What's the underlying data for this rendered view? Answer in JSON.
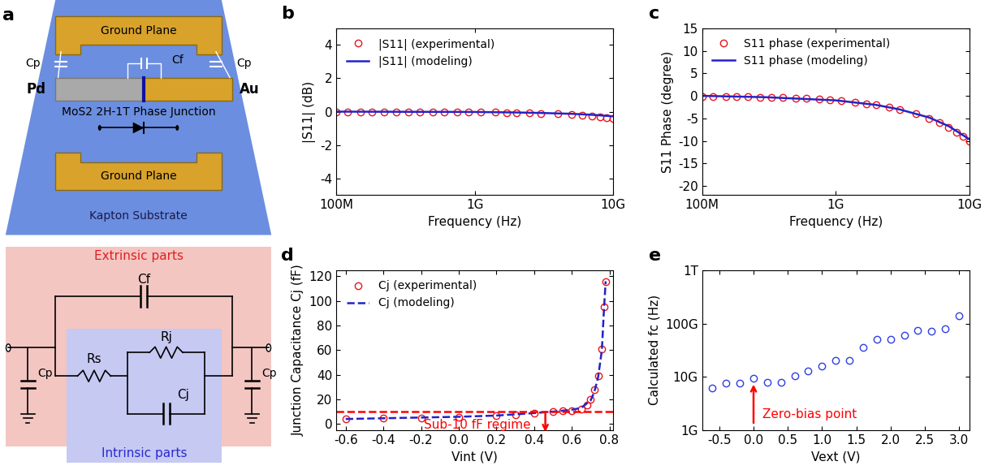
{
  "diagram": {
    "panel": "a",
    "substrate": "Kapton Substrate",
    "ground_planes": [
      "Ground Plane",
      "Ground Plane"
    ],
    "electrodes": [
      "Pd",
      "Au"
    ],
    "junction": "MoS2 2H-1T Phase Junction",
    "capacitors": {
      "parasitic": [
        "Cp",
        "Cp"
      ],
      "fringe": "Cf"
    },
    "circuit": {
      "extrinsic": "Extrinsic parts",
      "intrinsic": "Intrinsic parts",
      "fringe": "Cf",
      "parasitic": [
        "Cp",
        "Cp"
      ],
      "series": "Rs",
      "junction_resistance": "Rj",
      "junction_capacitance": "Cj"
    }
  },
  "chart_data": [
    {
      "panel": "b",
      "type": "line",
      "log": "x",
      "legend": "upper left",
      "xlabel": "Frequency (Hz)",
      "ylabel": "|S11| (dB)",
      "xlim": [
        100000000.0,
        10000000000.0
      ],
      "xticks": [
        {
          "value": 100000000.0,
          "label": "100M"
        },
        {
          "value": 1000000000.0,
          "label": "1G"
        },
        {
          "value": 10000000000.0,
          "label": "10G"
        }
      ],
      "ylim": [
        -5,
        5
      ],
      "yticks": [
        -4,
        -2,
        0,
        2,
        4
      ],
      "series": [
        {
          "name": "|S11| (experimental)",
          "type": "scatter",
          "marker": "o",
          "color": "#e8141c",
          "x": [
            100000000.0,
            120000000.0,
            150000000.0,
            180000000.0,
            220000000.0,
            270000000.0,
            330000000.0,
            400000000.0,
            500000000.0,
            600000000.0,
            750000000.0,
            900000000.0,
            1100000000.0,
            1400000000.0,
            1700000000.0,
            2000000000.0,
            2500000000.0,
            3000000000.0,
            4000000000.0,
            5000000000.0,
            6000000000.0,
            7000000000.0,
            8000000000.0,
            9000000000.0,
            10000000000.0
          ],
          "values": [
            -0.01,
            -0.01,
            -0.01,
            -0.01,
            -0.01,
            -0.01,
            -0.01,
            -0.02,
            -0.02,
            -0.02,
            -0.02,
            -0.03,
            -0.03,
            -0.04,
            -0.05,
            -0.06,
            -0.08,
            -0.1,
            -0.13,
            -0.17,
            -0.21,
            -0.26,
            -0.3,
            -0.35,
            -0.4
          ]
        },
        {
          "name": "|S11| (modeling)",
          "type": "line",
          "line_style": "solid",
          "color": "#2323c8",
          "x": [
            100000000.0,
            300000000.0,
            1000000000.0,
            2000000000.0,
            3000000000.0,
            5000000000.0,
            7000000000.0,
            10000000000.0
          ],
          "values": [
            0,
            -0.01,
            -0.02,
            -0.05,
            -0.08,
            -0.13,
            -0.19,
            -0.28
          ]
        }
      ]
    },
    {
      "panel": "c",
      "type": "line",
      "log": "x",
      "legend": "upper left",
      "xlabel": "Frequency (Hz)",
      "ylabel": "S11 Phase (degree)",
      "xlim": [
        100000000.0,
        10000000000.0
      ],
      "xticks": [
        {
          "value": 100000000.0,
          "label": "100M"
        },
        {
          "value": 1000000000.0,
          "label": "1G"
        },
        {
          "value": 10000000000.0,
          "label": "10G"
        }
      ],
      "ylim": [
        -22,
        15
      ],
      "yticks": [
        -20,
        -15,
        -10,
        -5,
        0,
        5,
        10,
        15
      ],
      "series": [
        {
          "name": "S11 phase (experimental)",
          "type": "scatter",
          "marker": "o",
          "color": "#e8141c",
          "x": [
            100000000.0,
            120000000.0,
            150000000.0,
            180000000.0,
            220000000.0,
            270000000.0,
            330000000.0,
            400000000.0,
            500000000.0,
            600000000.0,
            750000000.0,
            900000000.0,
            1100000000.0,
            1400000000.0,
            1700000000.0,
            2000000000.0,
            2500000000.0,
            3000000000.0,
            4000000000.0,
            5000000000.0,
            6000000000.0,
            7000000000.0,
            8000000000.0,
            9000000000.0,
            10000000000.0
          ],
          "values": [
            -0.1,
            -0.12,
            -0.15,
            -0.18,
            -0.22,
            -0.27,
            -0.33,
            -0.4,
            -0.5,
            -0.6,
            -0.75,
            -0.9,
            -1.1,
            -1.4,
            -1.7,
            -2.0,
            -2.5,
            -3.0,
            -4.0,
            -5.0,
            -6.0,
            -7.0,
            -8.0,
            -9.0,
            -10.0
          ]
        },
        {
          "name": "S11 phase (modeling)",
          "type": "line",
          "line_style": "solid",
          "color": "#2323c8",
          "x": [
            100000000.0,
            300000000.0,
            1000000000.0,
            2000000000.0,
            3000000000.0,
            5000000000.0,
            7000000000.0,
            10000000000.0
          ],
          "values": [
            0,
            -0.3,
            -1.0,
            -2.0,
            -3.0,
            -4.8,
            -6.7,
            -9.6
          ]
        }
      ]
    },
    {
      "panel": "d",
      "type": "line",
      "legend": "upper left",
      "xlabel": "Vint (V)",
      "ylabel": "Junction Capacitance Cj (fF)",
      "xlim": [
        -0.65,
        0.82
      ],
      "xticks": [
        -0.6,
        -0.4,
        -0.2,
        0.0,
        0.2,
        0.4,
        0.6,
        0.8
      ],
      "ylim": [
        -5,
        125
      ],
      "yticks": [
        0,
        20,
        40,
        60,
        80,
        100,
        120
      ],
      "annotation": {
        "text": "Sub-10 fF regime",
        "value": 10
      },
      "series": [
        {
          "name": "Cj (experimental)",
          "type": "scatter",
          "marker": "o",
          "color": "#e8141c",
          "x": [
            -0.6,
            -0.4,
            -0.2,
            0.0,
            0.2,
            0.3,
            0.4,
            0.5,
            0.55,
            0.6,
            0.65,
            0.68,
            0.7,
            0.72,
            0.74,
            0.76,
            0.77,
            0.78
          ],
          "values": [
            4,
            4.5,
            5,
            5.5,
            7,
            7.5,
            9,
            10,
            10.5,
            11,
            12,
            15,
            20,
            28,
            39,
            61,
            95,
            116
          ]
        },
        {
          "name": "Cj (modeling)",
          "type": "line",
          "line_style": "dashed",
          "color": "#2323c8",
          "x": [
            -0.6,
            -0.4,
            -0.2,
            0.0,
            0.2,
            0.4,
            0.5,
            0.6,
            0.65,
            0.7,
            0.72,
            0.74,
            0.76,
            0.77,
            0.78
          ],
          "values": [
            4,
            4.6,
            5.2,
            5.8,
            6.8,
            8.8,
            10,
            11.5,
            13,
            19,
            26,
            38,
            60,
            90,
            116
          ]
        }
      ]
    },
    {
      "panel": "e",
      "type": "scatter",
      "log": "y",
      "xlabel": "Vext (V)",
      "ylabel": "Calculated fc (Hz)",
      "xlim": [
        -0.75,
        3.15
      ],
      "xticks": [
        -0.5,
        0.0,
        0.5,
        1.0,
        1.5,
        2.0,
        2.5,
        3.0
      ],
      "ylim": [
        1000000000.0,
        1000000000000.0
      ],
      "yticks": [
        {
          "value": 1000000000.0,
          "label": "1G"
        },
        {
          "value": 10000000000.0,
          "label": "10G"
        },
        {
          "value": 100000000000.0,
          "label": "100G"
        },
        {
          "value": 1000000000000.0,
          "label": "1T"
        }
      ],
      "annotation": {
        "text": "Zero-bias point",
        "value": 0.0
      },
      "series": [
        {
          "name": "fc",
          "type": "scatter",
          "marker": "o",
          "color": "#2f3fe0",
          "x": [
            -0.6,
            -0.4,
            -0.2,
            0.0,
            0.2,
            0.4,
            0.6,
            0.8,
            1.0,
            1.2,
            1.4,
            1.6,
            1.8,
            2.0,
            2.2,
            2.4,
            2.6,
            2.8,
            3.0
          ],
          "values": [
            6200000000.0,
            7500000000.0,
            7600000000.0,
            9500000000.0,
            8000000000.0,
            8000000000.0,
            10500000000.0,
            13000000000.0,
            16000000000.0,
            20000000000.0,
            20000000000.0,
            36000000000.0,
            50000000000.0,
            50000000000.0,
            60000000000.0,
            75000000000.0,
            72000000000.0,
            80000000000.0,
            140000000000.0
          ]
        }
      ]
    }
  ]
}
